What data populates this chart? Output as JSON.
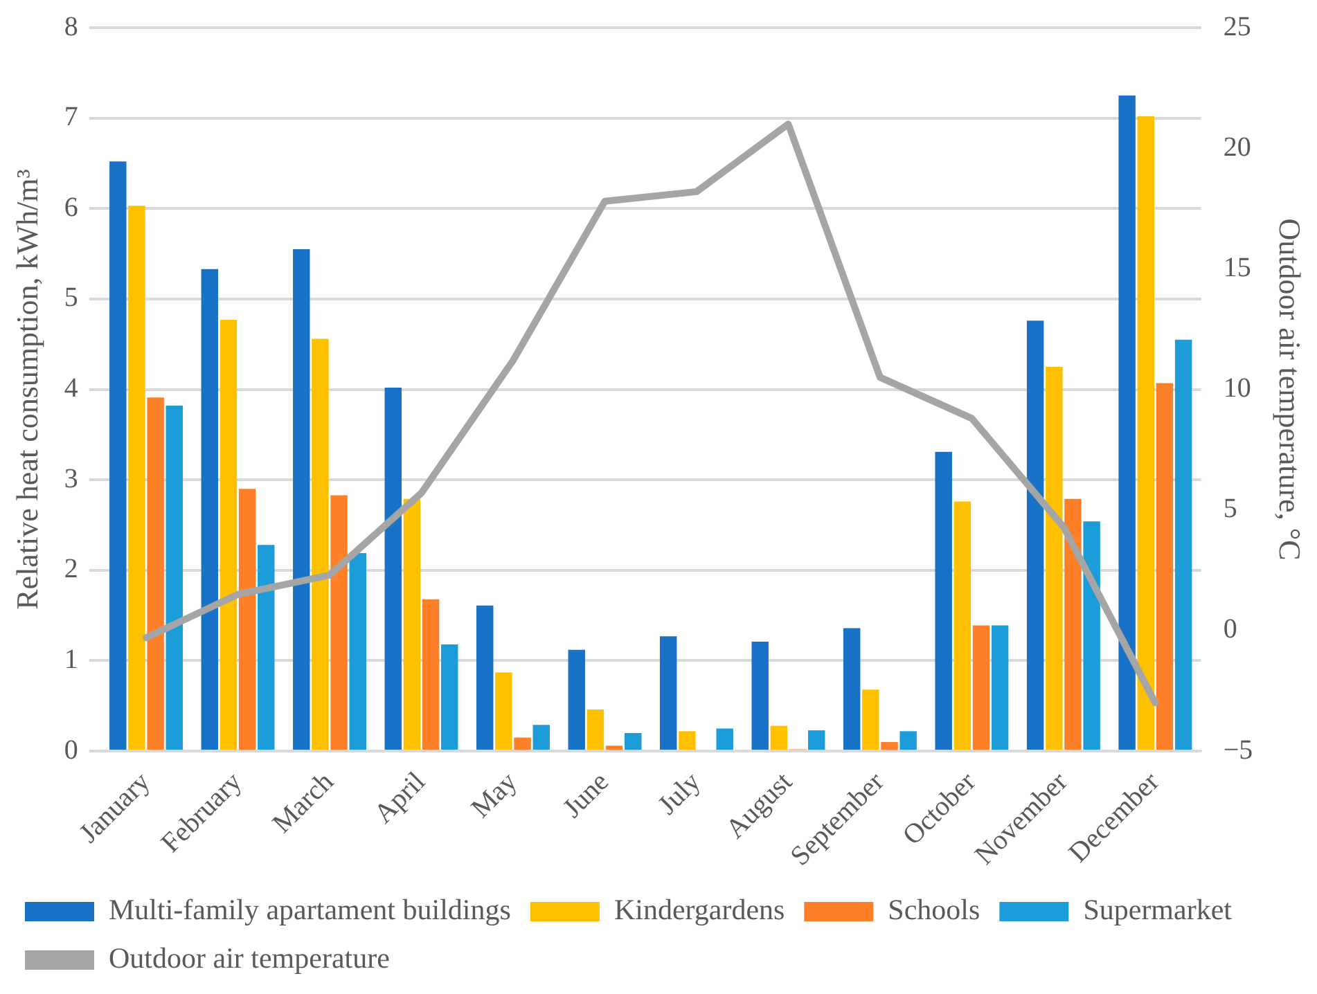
{
  "chart_data": {
    "type": "bar",
    "categories": [
      "January",
      "February",
      "March",
      "April",
      "May",
      "June",
      "July",
      "August",
      "September",
      "October",
      "November",
      "December"
    ],
    "series": [
      {
        "name": "Multi-family apartament buildings",
        "color": "#1872c6",
        "values": [
          6.52,
          5.33,
          5.55,
          4.02,
          1.61,
          1.12,
          1.27,
          1.21,
          1.36,
          3.31,
          4.76,
          7.25
        ]
      },
      {
        "name": "Kindergardens",
        "color": "#ffc000",
        "values": [
          6.03,
          4.77,
          4.56,
          2.79,
          0.87,
          0.46,
          0.22,
          0.28,
          0.68,
          2.76,
          4.25,
          7.02
        ]
      },
      {
        "name": "Schools",
        "color": "#fd7f27",
        "values": [
          3.91,
          2.9,
          2.83,
          1.68,
          0.15,
          0.06,
          0,
          0.02,
          0.1,
          1.39,
          2.79,
          4.07
        ]
      },
      {
        "name": "Supermarket",
        "color": "#1c9cd8",
        "values": [
          3.82,
          2.28,
          2.19,
          1.18,
          0.29,
          0.2,
          0.25,
          0.23,
          0.22,
          1.39,
          2.54,
          4.55
        ]
      },
      {
        "name": "Outdoor air temperature",
        "type": "line",
        "axis": "y2",
        "color": "#a5a5a5",
        "values": [
          -0.3,
          1.5,
          2.3,
          5.7,
          11.2,
          17.8,
          18.2,
          21.0,
          10.5,
          8.8,
          4.3,
          -3.0
        ]
      }
    ],
    "ylabel": "Relative heat consumption, kWh/m³",
    "y2label": "Outdoor air temperature, °C",
    "ylim": [
      0,
      8
    ],
    "yticks": [
      0,
      1,
      2,
      3,
      4,
      5,
      6,
      7,
      8
    ],
    "y2lim": [
      -5,
      25
    ],
    "y2ticks": [
      -5,
      0,
      5,
      10,
      15,
      20,
      25
    ],
    "grid": "y",
    "legend": "bottom",
    "marker": "none"
  }
}
